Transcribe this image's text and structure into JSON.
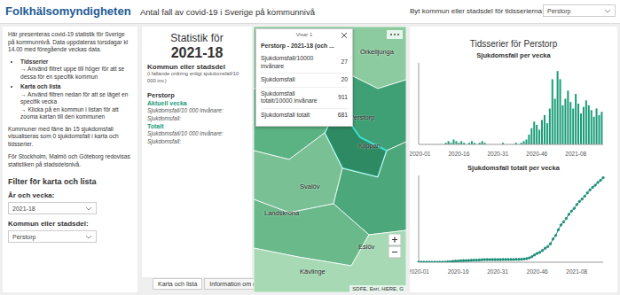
{
  "header": {
    "logo": "Folkhälsomyndigheten",
    "title": "Antal fall av covid-19 i Sverige på kommunnivå",
    "selector_label": "Byt kommun eller stadsdel för tidsserierna:",
    "selector_value": "Perstorp"
  },
  "sidebar": {
    "intro": "Här presenteras covid-19 statistik för Sverige på kommunnivå. Data uppdateras torsdagar kl 14.00 med föregående veckas data.",
    "bullets": [
      {
        "title": "Tidsserier",
        "items": [
          "→ Använd filtret uppe till höger för att se dessa för en specifik kommun"
        ]
      },
      {
        "title": "Karta och lista",
        "items": [
          "→ Använd filtren nedan för att se läget en specifik vecka",
          "→ Klicka på en kommun i listan för att zooma kartan till den kommunen"
        ]
      }
    ],
    "notes": [
      "Kommuner med färre än 15 sjukdomsfall visualiseras som 0 sjukdomsfall i karta och tidsserier.",
      "För Stockholm, Malmö och Göteborg redovisas statistiken på stadsdelsnivå."
    ],
    "filter_title": "Filter för karta och lista",
    "filters": [
      {
        "label": "År och vecka:",
        "value": "2021-18"
      },
      {
        "label": "Kommun eller stadsdel:",
        "value": "Perstorp"
      }
    ]
  },
  "list": {
    "title": "Statistik för",
    "week": "2021-18",
    "heading": "Kommun eller stadsdel",
    "subheading": "(i fallande ordning enligt sjukdomsfall/10 000 inv.)",
    "entry": {
      "name": "Perstorp",
      "sections": [
        {
          "title": "Aktuell vecka",
          "fields": [
            "Sjukdomsfall/10 000 invånare:",
            "Sjukdomsfall:"
          ]
        },
        {
          "title": "Totalt",
          "fields": [
            "Sjukdomsfall/10 000 invånare:",
            "Sjukdomsfall:"
          ]
        }
      ]
    }
  },
  "tabs": [
    "Karta och lista",
    "Information om datakällor"
  ],
  "map": {
    "labels": [
      "Örkelljunga",
      "Perstorp",
      "Klippan",
      "Svalöv",
      "Landskrona",
      "Eslöv",
      "Kävlinge"
    ],
    "attribution": "SDFE, Esri, HERE, G",
    "popup": {
      "counter": "Visar 1",
      "title": "Perstorp - 2021-18 (och ...",
      "rows": [
        {
          "label": "Sjukdomsfall/10000 invånare",
          "value": 27
        },
        {
          "label": "Sjukdomsfall",
          "value": 20
        },
        {
          "label": "Sjukdomsfall totalt/10000 invånare",
          "value": 911
        },
        {
          "label": "Sjukdomsfall totalt",
          "value": 681
        }
      ]
    }
  },
  "timeseries_title": "Tidsserier för Perstorp",
  "chart_data": [
    {
      "type": "bar",
      "title": "Sjukdomsfall per vecka",
      "categories": [
        "2020-01",
        null,
        null,
        null,
        null,
        null,
        null,
        null,
        null,
        null,
        null,
        null,
        null,
        null,
        null,
        "2020-16",
        null,
        null,
        null,
        null,
        null,
        null,
        null,
        null,
        null,
        null,
        null,
        null,
        null,
        null,
        "2020-31",
        null,
        null,
        null,
        null,
        null,
        null,
        null,
        null,
        null,
        null,
        null,
        null,
        null,
        null,
        "2020-46",
        null,
        null,
        null,
        null,
        null,
        null,
        null,
        null,
        null,
        null,
        null,
        null,
        null,
        null,
        "2021-08",
        null,
        null,
        null,
        null,
        null,
        null,
        null,
        null,
        null,
        null
      ],
      "values": [
        0,
        0,
        0,
        0,
        0,
        0,
        0,
        0,
        0,
        0,
        1,
        2,
        1,
        3,
        2,
        1,
        2,
        1,
        0,
        1,
        2,
        1,
        0,
        1,
        2,
        1,
        0,
        0,
        0,
        0,
        0,
        0,
        1,
        0,
        0,
        0,
        0,
        1,
        0,
        1,
        2,
        3,
        6,
        10,
        14,
        12,
        9,
        15,
        18,
        13,
        22,
        40,
        28,
        45,
        40,
        24,
        28,
        33,
        26,
        22,
        31,
        25,
        19,
        23,
        27,
        24,
        21,
        17,
        22,
        18,
        20
      ],
      "color": "#1a9c78",
      "ylim": [
        0,
        50
      ],
      "grid": false,
      "tick_labels": "x"
    },
    {
      "type": "line",
      "title": "Sjukdomsfall totalt per vecka",
      "categories": [
        "2020-01",
        null,
        null,
        null,
        null,
        null,
        null,
        null,
        null,
        null,
        null,
        null,
        null,
        null,
        null,
        "2020-16",
        null,
        null,
        null,
        null,
        null,
        null,
        null,
        null,
        null,
        null,
        null,
        null,
        null,
        null,
        "2020-31",
        null,
        null,
        null,
        null,
        null,
        null,
        null,
        null,
        null,
        null,
        null,
        null,
        null,
        null,
        "2020-46",
        null,
        null,
        null,
        null,
        null,
        null,
        null,
        null,
        null,
        null,
        null,
        null,
        null,
        null,
        "2021-08",
        null,
        null,
        null,
        null,
        null,
        null,
        null,
        null,
        null,
        null
      ],
      "values": [
        0,
        0,
        0,
        0,
        0,
        0,
        0,
        0,
        0,
        0,
        1,
        3,
        4,
        7,
        9,
        10,
        12,
        13,
        13,
        14,
        16,
        17,
        17,
        18,
        20,
        21,
        21,
        21,
        21,
        21,
        21,
        21,
        22,
        22,
        22,
        22,
        22,
        23,
        23,
        24,
        26,
        29,
        35,
        45,
        59,
        71,
        80,
        95,
        113,
        126,
        148,
        188,
        216,
        261,
        301,
        325,
        353,
        386,
        412,
        434,
        465,
        490,
        509,
        532,
        559,
        583,
        604,
        621,
        643,
        661,
        681
      ],
      "color": "#1f8f7a",
      "marker": "circle",
      "ylim": [
        0,
        700
      ],
      "grid": false,
      "tick_labels": "x"
    }
  ]
}
